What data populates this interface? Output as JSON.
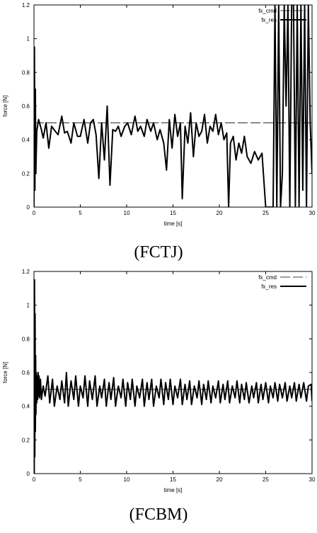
{
  "chart_data": [
    {
      "type": "line",
      "caption": "(FCTJ)",
      "xlabel": "time [s]",
      "ylabel": "force [N]",
      "xlim": [
        0,
        30
      ],
      "ylim": [
        0,
        1.2
      ],
      "xticks": [
        "0",
        "5",
        "10",
        "15",
        "20",
        "25",
        "30"
      ],
      "yticks": [
        "0",
        "0.2",
        "0.4",
        "0.6",
        "0.8",
        "1",
        "1.2"
      ],
      "legend_position": "top-right",
      "grid": false,
      "series": [
        {
          "name": "fx_cmd",
          "style": "dashed",
          "x": [
            0,
            30
          ],
          "y": [
            0.5,
            0.5
          ]
        },
        {
          "name": "fx_res",
          "style": "solid",
          "x": [
            0,
            0.05,
            0.1,
            0.15,
            0.2,
            0.3,
            0.5,
            0.8,
            1.0,
            1.3,
            1.6,
            1.9,
            2.3,
            2.6,
            3.0,
            3.3,
            3.6,
            4.0,
            4.3,
            4.7,
            5.0,
            5.4,
            5.8,
            6.1,
            6.4,
            6.7,
            7.0,
            7.3,
            7.6,
            7.9,
            8.2,
            8.5,
            8.8,
            9.1,
            9.4,
            9.8,
            10.1,
            10.5,
            10.9,
            11.2,
            11.5,
            11.9,
            12.2,
            12.6,
            12.9,
            13.3,
            13.6,
            14.0,
            14.3,
            14.6,
            14.9,
            15.2,
            15.5,
            15.8,
            16.0,
            16.3,
            16.6,
            16.9,
            17.2,
            17.5,
            17.8,
            18.1,
            18.4,
            18.7,
            19.0,
            19.3,
            19.6,
            19.9,
            20.2,
            20.5,
            20.8,
            21.0,
            21.2,
            21.5,
            21.8,
            22.1,
            22.4,
            22.7,
            23.0,
            23.4,
            23.8,
            24.2,
            24.6,
            25.0,
            25.2,
            25.5,
            25.8,
            26.0,
            26.2,
            26.4,
            26.6,
            26.8,
            27.0,
            27.2,
            27.4,
            27.6,
            27.8,
            28.0,
            28.2,
            28.4,
            28.6,
            28.8,
            29.0,
            29.2,
            29.4,
            29.6,
            29.8,
            30.0
          ],
          "y": [
            0.0,
            0.95,
            0.1,
            0.7,
            0.2,
            0.45,
            0.52,
            0.46,
            0.41,
            0.5,
            0.35,
            0.48,
            0.45,
            0.43,
            0.54,
            0.44,
            0.45,
            0.38,
            0.5,
            0.42,
            0.42,
            0.52,
            0.38,
            0.5,
            0.52,
            0.43,
            0.17,
            0.5,
            0.28,
            0.6,
            0.13,
            0.46,
            0.45,
            0.48,
            0.42,
            0.48,
            0.5,
            0.43,
            0.54,
            0.45,
            0.48,
            0.42,
            0.52,
            0.45,
            0.5,
            0.4,
            0.46,
            0.38,
            0.22,
            0.52,
            0.35,
            0.55,
            0.42,
            0.5,
            0.05,
            0.48,
            0.38,
            0.56,
            0.3,
            0.5,
            0.42,
            0.45,
            0.55,
            0.38,
            0.48,
            0.45,
            0.55,
            0.43,
            0.5,
            0.4,
            0.44,
            0.0,
            0.38,
            0.42,
            0.28,
            0.38,
            0.32,
            0.42,
            0.3,
            0.26,
            0.33,
            0.28,
            0.32,
            0.0,
            0.0,
            0.0,
            0.0,
            1.2,
            0.0,
            1.2,
            0.0,
            0.2,
            1.2,
            0.6,
            1.2,
            0.0,
            1.2,
            1.2,
            0.0,
            1.2,
            0.0,
            1.2,
            0.1,
            1.2,
            0.0,
            1.2,
            0.5,
            0.2
          ]
        }
      ]
    },
    {
      "type": "line",
      "caption": "(FCBM)",
      "xlabel": "time [s]",
      "ylabel": "force [N]",
      "xlim": [
        0,
        30
      ],
      "ylim": [
        0,
        1.2
      ],
      "xticks": [
        "0",
        "5",
        "10",
        "15",
        "20",
        "25",
        "30"
      ],
      "yticks": [
        "0",
        "0.2",
        "0.4",
        "0.6",
        "0.8",
        "1",
        "1.2"
      ],
      "legend_position": "top-right",
      "grid": false,
      "series": [
        {
          "name": "fx_cmd",
          "style": "dashed",
          "x": [
            0,
            30
          ],
          "y": [
            0.5,
            0.5
          ]
        },
        {
          "name": "fx_res",
          "style": "solid",
          "x": [
            0,
            0.03,
            0.06,
            0.09,
            0.12,
            0.15,
            0.18,
            0.21,
            0.25,
            0.3,
            0.35,
            0.4,
            0.45,
            0.5,
            0.55,
            0.6,
            0.7,
            0.8,
            1.0,
            1.2,
            1.5,
            1.7,
            2.0,
            2.2,
            2.5,
            2.8,
            3.0,
            3.3,
            3.5,
            3.7,
            4.0,
            4.3,
            4.5,
            4.8,
            5.0,
            5.3,
            5.5,
            5.8,
            6.0,
            6.3,
            6.6,
            6.8,
            7.1,
            7.3,
            7.6,
            7.8,
            8.1,
            8.3,
            8.6,
            8.8,
            9.1,
            9.4,
            9.6,
            9.9,
            10.1,
            10.4,
            10.6,
            10.9,
            11.1,
            11.4,
            11.7,
            11.9,
            12.2,
            12.4,
            12.7,
            12.9,
            13.2,
            13.5,
            13.7,
            14.0,
            14.2,
            14.5,
            14.7,
            15.0,
            15.2,
            15.5,
            15.8,
            16.0,
            16.3,
            16.5,
            16.8,
            17.0,
            17.3,
            17.6,
            17.8,
            18.1,
            18.3,
            18.6,
            18.8,
            19.1,
            19.3,
            19.6,
            19.9,
            20.1,
            20.4,
            20.6,
            20.9,
            21.1,
            21.4,
            21.7,
            21.9,
            22.2,
            22.4,
            22.7,
            22.9,
            23.2,
            23.5,
            23.7,
            24.0,
            24.2,
            24.5,
            24.7,
            25.0,
            25.3,
            25.5,
            25.8,
            26.0,
            26.3,
            26.5,
            26.8,
            27.1,
            27.3,
            27.6,
            27.8,
            28.1,
            28.3,
            28.6,
            28.8,
            29.1,
            29.4,
            29.6,
            29.9,
            30.0
          ],
          "y": [
            1.0,
            0.0,
            1.15,
            0.1,
            0.95,
            0.25,
            0.7,
            0.35,
            0.6,
            0.42,
            0.58,
            0.44,
            0.6,
            0.46,
            0.58,
            0.45,
            0.56,
            0.44,
            0.52,
            0.46,
            0.58,
            0.42,
            0.56,
            0.4,
            0.52,
            0.44,
            0.55,
            0.42,
            0.6,
            0.4,
            0.55,
            0.44,
            0.58,
            0.4,
            0.52,
            0.45,
            0.58,
            0.4,
            0.55,
            0.44,
            0.58,
            0.4,
            0.52,
            0.45,
            0.56,
            0.4,
            0.54,
            0.44,
            0.57,
            0.4,
            0.52,
            0.45,
            0.56,
            0.4,
            0.54,
            0.44,
            0.56,
            0.4,
            0.52,
            0.45,
            0.56,
            0.4,
            0.54,
            0.44,
            0.56,
            0.4,
            0.52,
            0.45,
            0.56,
            0.41,
            0.54,
            0.44,
            0.56,
            0.41,
            0.52,
            0.45,
            0.56,
            0.41,
            0.53,
            0.44,
            0.55,
            0.41,
            0.52,
            0.45,
            0.55,
            0.41,
            0.53,
            0.44,
            0.55,
            0.42,
            0.52,
            0.45,
            0.55,
            0.42,
            0.53,
            0.44,
            0.55,
            0.42,
            0.52,
            0.45,
            0.55,
            0.42,
            0.53,
            0.44,
            0.54,
            0.42,
            0.52,
            0.45,
            0.54,
            0.42,
            0.53,
            0.44,
            0.54,
            0.42,
            0.52,
            0.45,
            0.54,
            0.43,
            0.53,
            0.45,
            0.54,
            0.43,
            0.52,
            0.45,
            0.54,
            0.43,
            0.53,
            0.45,
            0.54,
            0.43,
            0.52,
            0.53,
            0.43
          ]
        }
      ]
    }
  ]
}
